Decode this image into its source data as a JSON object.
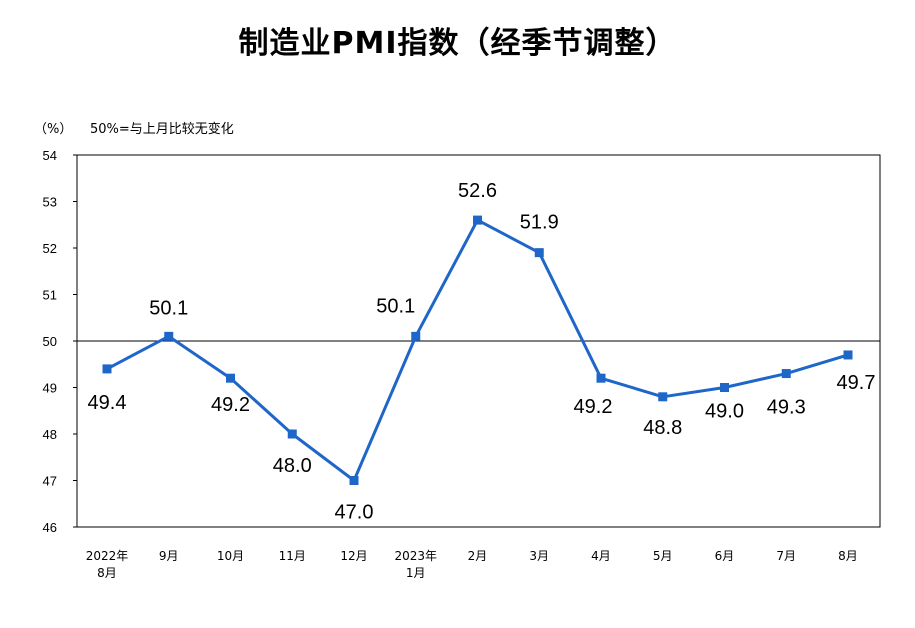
{
  "chart_data": {
    "type": "line",
    "title": "制造业PMI指数（经季节调整）",
    "unit": "（%）",
    "reference_note": "50%=与上月比较无变化",
    "reference_value": 50,
    "ylim": [
      46,
      54
    ],
    "yticks": [
      "46",
      "47",
      "48",
      "49",
      "50",
      "51",
      "52",
      "53",
      "54"
    ],
    "categories": [
      [
        "2022年",
        "8月"
      ],
      [
        "9月"
      ],
      [
        "10月"
      ],
      [
        "11月"
      ],
      [
        "12月"
      ],
      [
        "2023年",
        "1月"
      ],
      [
        "2月"
      ],
      [
        "3月"
      ],
      [
        "4月"
      ],
      [
        "5月"
      ],
      [
        "6月"
      ],
      [
        "7月"
      ],
      [
        "8月"
      ]
    ],
    "values": [
      49.4,
      50.1,
      49.2,
      48.0,
      47.0,
      50.1,
      52.6,
      51.9,
      49.2,
      48.8,
      49.0,
      49.3,
      49.7
    ],
    "value_labels": [
      "49.4",
      "50.1",
      "49.2",
      "48.0",
      "47.0",
      "50.1",
      "52.6",
      "51.9",
      "49.2",
      "48.8",
      "49.0",
      "49.3",
      "49.7"
    ],
    "series_color": "#1f66c9",
    "grid": false
  }
}
